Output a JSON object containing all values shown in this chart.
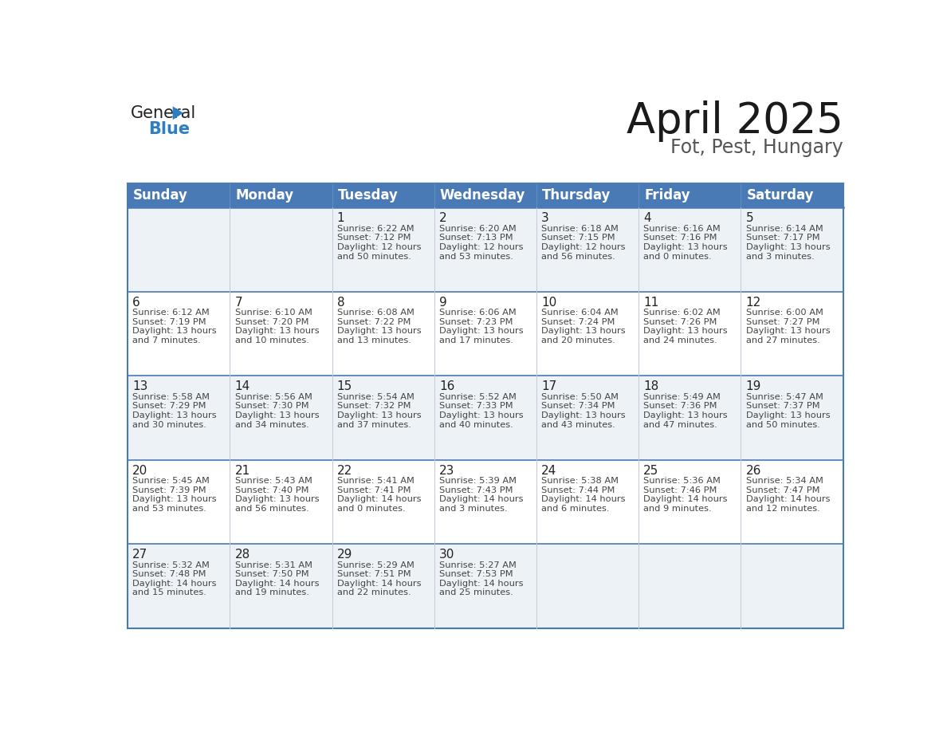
{
  "title": "April 2025",
  "subtitle": "Fot, Pest, Hungary",
  "header_bg": "#4a7ab5",
  "header_text_color": "#ffffff",
  "cell_bg_odd": "#edf2f7",
  "cell_bg_even": "#ffffff",
  "days_of_week": [
    "Sunday",
    "Monday",
    "Tuesday",
    "Wednesday",
    "Thursday",
    "Friday",
    "Saturday"
  ],
  "weeks": [
    [
      {
        "day": "",
        "sunrise": "",
        "sunset": "",
        "daylight": ""
      },
      {
        "day": "",
        "sunrise": "",
        "sunset": "",
        "daylight": ""
      },
      {
        "day": "1",
        "sunrise": "Sunrise: 6:22 AM",
        "sunset": "Sunset: 7:12 PM",
        "daylight": "Daylight: 12 hours\nand 50 minutes."
      },
      {
        "day": "2",
        "sunrise": "Sunrise: 6:20 AM",
        "sunset": "Sunset: 7:13 PM",
        "daylight": "Daylight: 12 hours\nand 53 minutes."
      },
      {
        "day": "3",
        "sunrise": "Sunrise: 6:18 AM",
        "sunset": "Sunset: 7:15 PM",
        "daylight": "Daylight: 12 hours\nand 56 minutes."
      },
      {
        "day": "4",
        "sunrise": "Sunrise: 6:16 AM",
        "sunset": "Sunset: 7:16 PM",
        "daylight": "Daylight: 13 hours\nand 0 minutes."
      },
      {
        "day": "5",
        "sunrise": "Sunrise: 6:14 AM",
        "sunset": "Sunset: 7:17 PM",
        "daylight": "Daylight: 13 hours\nand 3 minutes."
      }
    ],
    [
      {
        "day": "6",
        "sunrise": "Sunrise: 6:12 AM",
        "sunset": "Sunset: 7:19 PM",
        "daylight": "Daylight: 13 hours\nand 7 minutes."
      },
      {
        "day": "7",
        "sunrise": "Sunrise: 6:10 AM",
        "sunset": "Sunset: 7:20 PM",
        "daylight": "Daylight: 13 hours\nand 10 minutes."
      },
      {
        "day": "8",
        "sunrise": "Sunrise: 6:08 AM",
        "sunset": "Sunset: 7:22 PM",
        "daylight": "Daylight: 13 hours\nand 13 minutes."
      },
      {
        "day": "9",
        "sunrise": "Sunrise: 6:06 AM",
        "sunset": "Sunset: 7:23 PM",
        "daylight": "Daylight: 13 hours\nand 17 minutes."
      },
      {
        "day": "10",
        "sunrise": "Sunrise: 6:04 AM",
        "sunset": "Sunset: 7:24 PM",
        "daylight": "Daylight: 13 hours\nand 20 minutes."
      },
      {
        "day": "11",
        "sunrise": "Sunrise: 6:02 AM",
        "sunset": "Sunset: 7:26 PM",
        "daylight": "Daylight: 13 hours\nand 24 minutes."
      },
      {
        "day": "12",
        "sunrise": "Sunrise: 6:00 AM",
        "sunset": "Sunset: 7:27 PM",
        "daylight": "Daylight: 13 hours\nand 27 minutes."
      }
    ],
    [
      {
        "day": "13",
        "sunrise": "Sunrise: 5:58 AM",
        "sunset": "Sunset: 7:29 PM",
        "daylight": "Daylight: 13 hours\nand 30 minutes."
      },
      {
        "day": "14",
        "sunrise": "Sunrise: 5:56 AM",
        "sunset": "Sunset: 7:30 PM",
        "daylight": "Daylight: 13 hours\nand 34 minutes."
      },
      {
        "day": "15",
        "sunrise": "Sunrise: 5:54 AM",
        "sunset": "Sunset: 7:32 PM",
        "daylight": "Daylight: 13 hours\nand 37 minutes."
      },
      {
        "day": "16",
        "sunrise": "Sunrise: 5:52 AM",
        "sunset": "Sunset: 7:33 PM",
        "daylight": "Daylight: 13 hours\nand 40 minutes."
      },
      {
        "day": "17",
        "sunrise": "Sunrise: 5:50 AM",
        "sunset": "Sunset: 7:34 PM",
        "daylight": "Daylight: 13 hours\nand 43 minutes."
      },
      {
        "day": "18",
        "sunrise": "Sunrise: 5:49 AM",
        "sunset": "Sunset: 7:36 PM",
        "daylight": "Daylight: 13 hours\nand 47 minutes."
      },
      {
        "day": "19",
        "sunrise": "Sunrise: 5:47 AM",
        "sunset": "Sunset: 7:37 PM",
        "daylight": "Daylight: 13 hours\nand 50 minutes."
      }
    ],
    [
      {
        "day": "20",
        "sunrise": "Sunrise: 5:45 AM",
        "sunset": "Sunset: 7:39 PM",
        "daylight": "Daylight: 13 hours\nand 53 minutes."
      },
      {
        "day": "21",
        "sunrise": "Sunrise: 5:43 AM",
        "sunset": "Sunset: 7:40 PM",
        "daylight": "Daylight: 13 hours\nand 56 minutes."
      },
      {
        "day": "22",
        "sunrise": "Sunrise: 5:41 AM",
        "sunset": "Sunset: 7:41 PM",
        "daylight": "Daylight: 14 hours\nand 0 minutes."
      },
      {
        "day": "23",
        "sunrise": "Sunrise: 5:39 AM",
        "sunset": "Sunset: 7:43 PM",
        "daylight": "Daylight: 14 hours\nand 3 minutes."
      },
      {
        "day": "24",
        "sunrise": "Sunrise: 5:38 AM",
        "sunset": "Sunset: 7:44 PM",
        "daylight": "Daylight: 14 hours\nand 6 minutes."
      },
      {
        "day": "25",
        "sunrise": "Sunrise: 5:36 AM",
        "sunset": "Sunset: 7:46 PM",
        "daylight": "Daylight: 14 hours\nand 9 minutes."
      },
      {
        "day": "26",
        "sunrise": "Sunrise: 5:34 AM",
        "sunset": "Sunset: 7:47 PM",
        "daylight": "Daylight: 14 hours\nand 12 minutes."
      }
    ],
    [
      {
        "day": "27",
        "sunrise": "Sunrise: 5:32 AM",
        "sunset": "Sunset: 7:48 PM",
        "daylight": "Daylight: 14 hours\nand 15 minutes."
      },
      {
        "day": "28",
        "sunrise": "Sunrise: 5:31 AM",
        "sunset": "Sunset: 7:50 PM",
        "daylight": "Daylight: 14 hours\nand 19 minutes."
      },
      {
        "day": "29",
        "sunrise": "Sunrise: 5:29 AM",
        "sunset": "Sunset: 7:51 PM",
        "daylight": "Daylight: 14 hours\nand 22 minutes."
      },
      {
        "day": "30",
        "sunrise": "Sunrise: 5:27 AM",
        "sunset": "Sunset: 7:53 PM",
        "daylight": "Daylight: 14 hours\nand 25 minutes."
      },
      {
        "day": "",
        "sunrise": "",
        "sunset": "",
        "daylight": ""
      },
      {
        "day": "",
        "sunrise": "",
        "sunset": "",
        "daylight": ""
      },
      {
        "day": "",
        "sunrise": "",
        "sunset": "",
        "daylight": ""
      }
    ]
  ],
  "logo_color_general": "#222222",
  "logo_color_blue": "#2e7fc1",
  "logo_triangle_color": "#2e7fc1",
  "title_fontsize": 38,
  "subtitle_fontsize": 17,
  "header_fontsize": 12,
  "day_num_fontsize": 11,
  "cell_text_fontsize": 8.2,
  "border_color": "#4a7ab5",
  "row_line_color": "#4a7ab5",
  "col_line_color": "#c0c8d8"
}
